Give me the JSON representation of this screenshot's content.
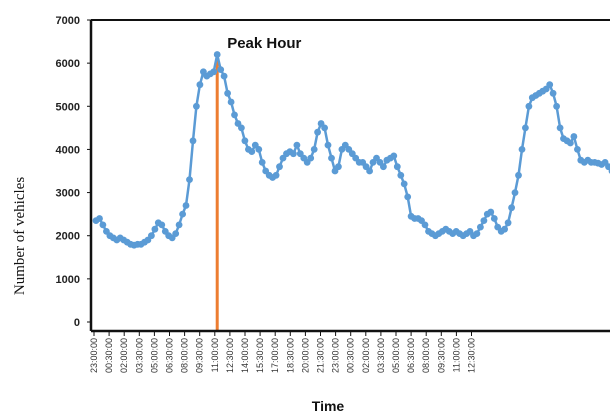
{
  "chart_data": {
    "type": "line",
    "title": "",
    "xlabel": "Time",
    "ylabel": "Number of vehicles",
    "ylim": [
      0,
      7000
    ],
    "yticks": [
      0,
      1000,
      2000,
      3000,
      4000,
      5000,
      6000,
      7000
    ],
    "x_tick_labels": [
      "23:00:00",
      "00:30:00",
      "02:00:00",
      "03:30:00",
      "05:00:00",
      "06:30:00",
      "08:00:00",
      "09:30:00",
      "11:00:00",
      "12:30:00",
      "14:00:00",
      "15:30:00",
      "17:00:00",
      "18:30:00",
      "20:00:00",
      "21:30:00",
      "23:00:00",
      "00:30:00",
      "02:00:00",
      "03:30:00",
      "05:00:00",
      "06:30:00",
      "08:00:00",
      "09:30:00",
      "11:00:00",
      "12:30:00"
    ],
    "grid": false,
    "colors": {
      "series": "#5b9bd5",
      "peak_line": "#ed7d31",
      "frame": "#111111"
    },
    "series": [
      {
        "values": [
          2350,
          2400,
          2250,
          2100,
          2000,
          1950,
          1900,
          1950,
          1900,
          1850,
          1800,
          1780,
          1800,
          1800,
          1850,
          1900,
          2000,
          2150,
          2300,
          2250,
          2100,
          2000,
          1950,
          2050,
          2250,
          2500,
          2700,
          3300,
          4200,
          5000,
          5500,
          5800,
          5700,
          5750,
          5800,
          6200,
          5850,
          5700,
          5300,
          5100,
          4800,
          4600,
          4500,
          4200,
          4000,
          3950,
          4100,
          4000,
          3700,
          3500,
          3400,
          3350,
          3400,
          3600,
          3800,
          3900,
          3950,
          3900,
          4100,
          3900,
          3800,
          3700,
          3800,
          4000,
          4400,
          4600,
          4500,
          4100,
          3800,
          3500,
          3600,
          4000,
          4100,
          4000,
          3900,
          3800,
          3700,
          3700,
          3600,
          3500,
          3700,
          3800,
          3700,
          3600,
          3750,
          3800,
          3850,
          3600,
          3400,
          3200,
          2900,
          2450,
          2400,
          2400,
          2350,
          2250,
          2100,
          2050,
          2000,
          2050,
          2100,
          2150,
          2100,
          2050,
          2100,
          2050,
          2000,
          2050,
          2100,
          2000,
          2050,
          2200,
          2350,
          2500,
          2550,
          2400,
          2200,
          2100,
          2150,
          2300,
          2650,
          3000,
          3400,
          4000,
          4500,
          5000,
          5200,
          5250,
          5300,
          5350,
          5400,
          5500,
          5300,
          5000,
          4500,
          4250,
          4200,
          4150,
          4300,
          4000,
          3750,
          3700,
          3750,
          3700,
          3700,
          3680,
          3650,
          3700,
          3600,
          3500
        ]
      }
    ],
    "annotations": [
      {
        "text": "Peak Hour",
        "at_value": 6200
      }
    ]
  }
}
